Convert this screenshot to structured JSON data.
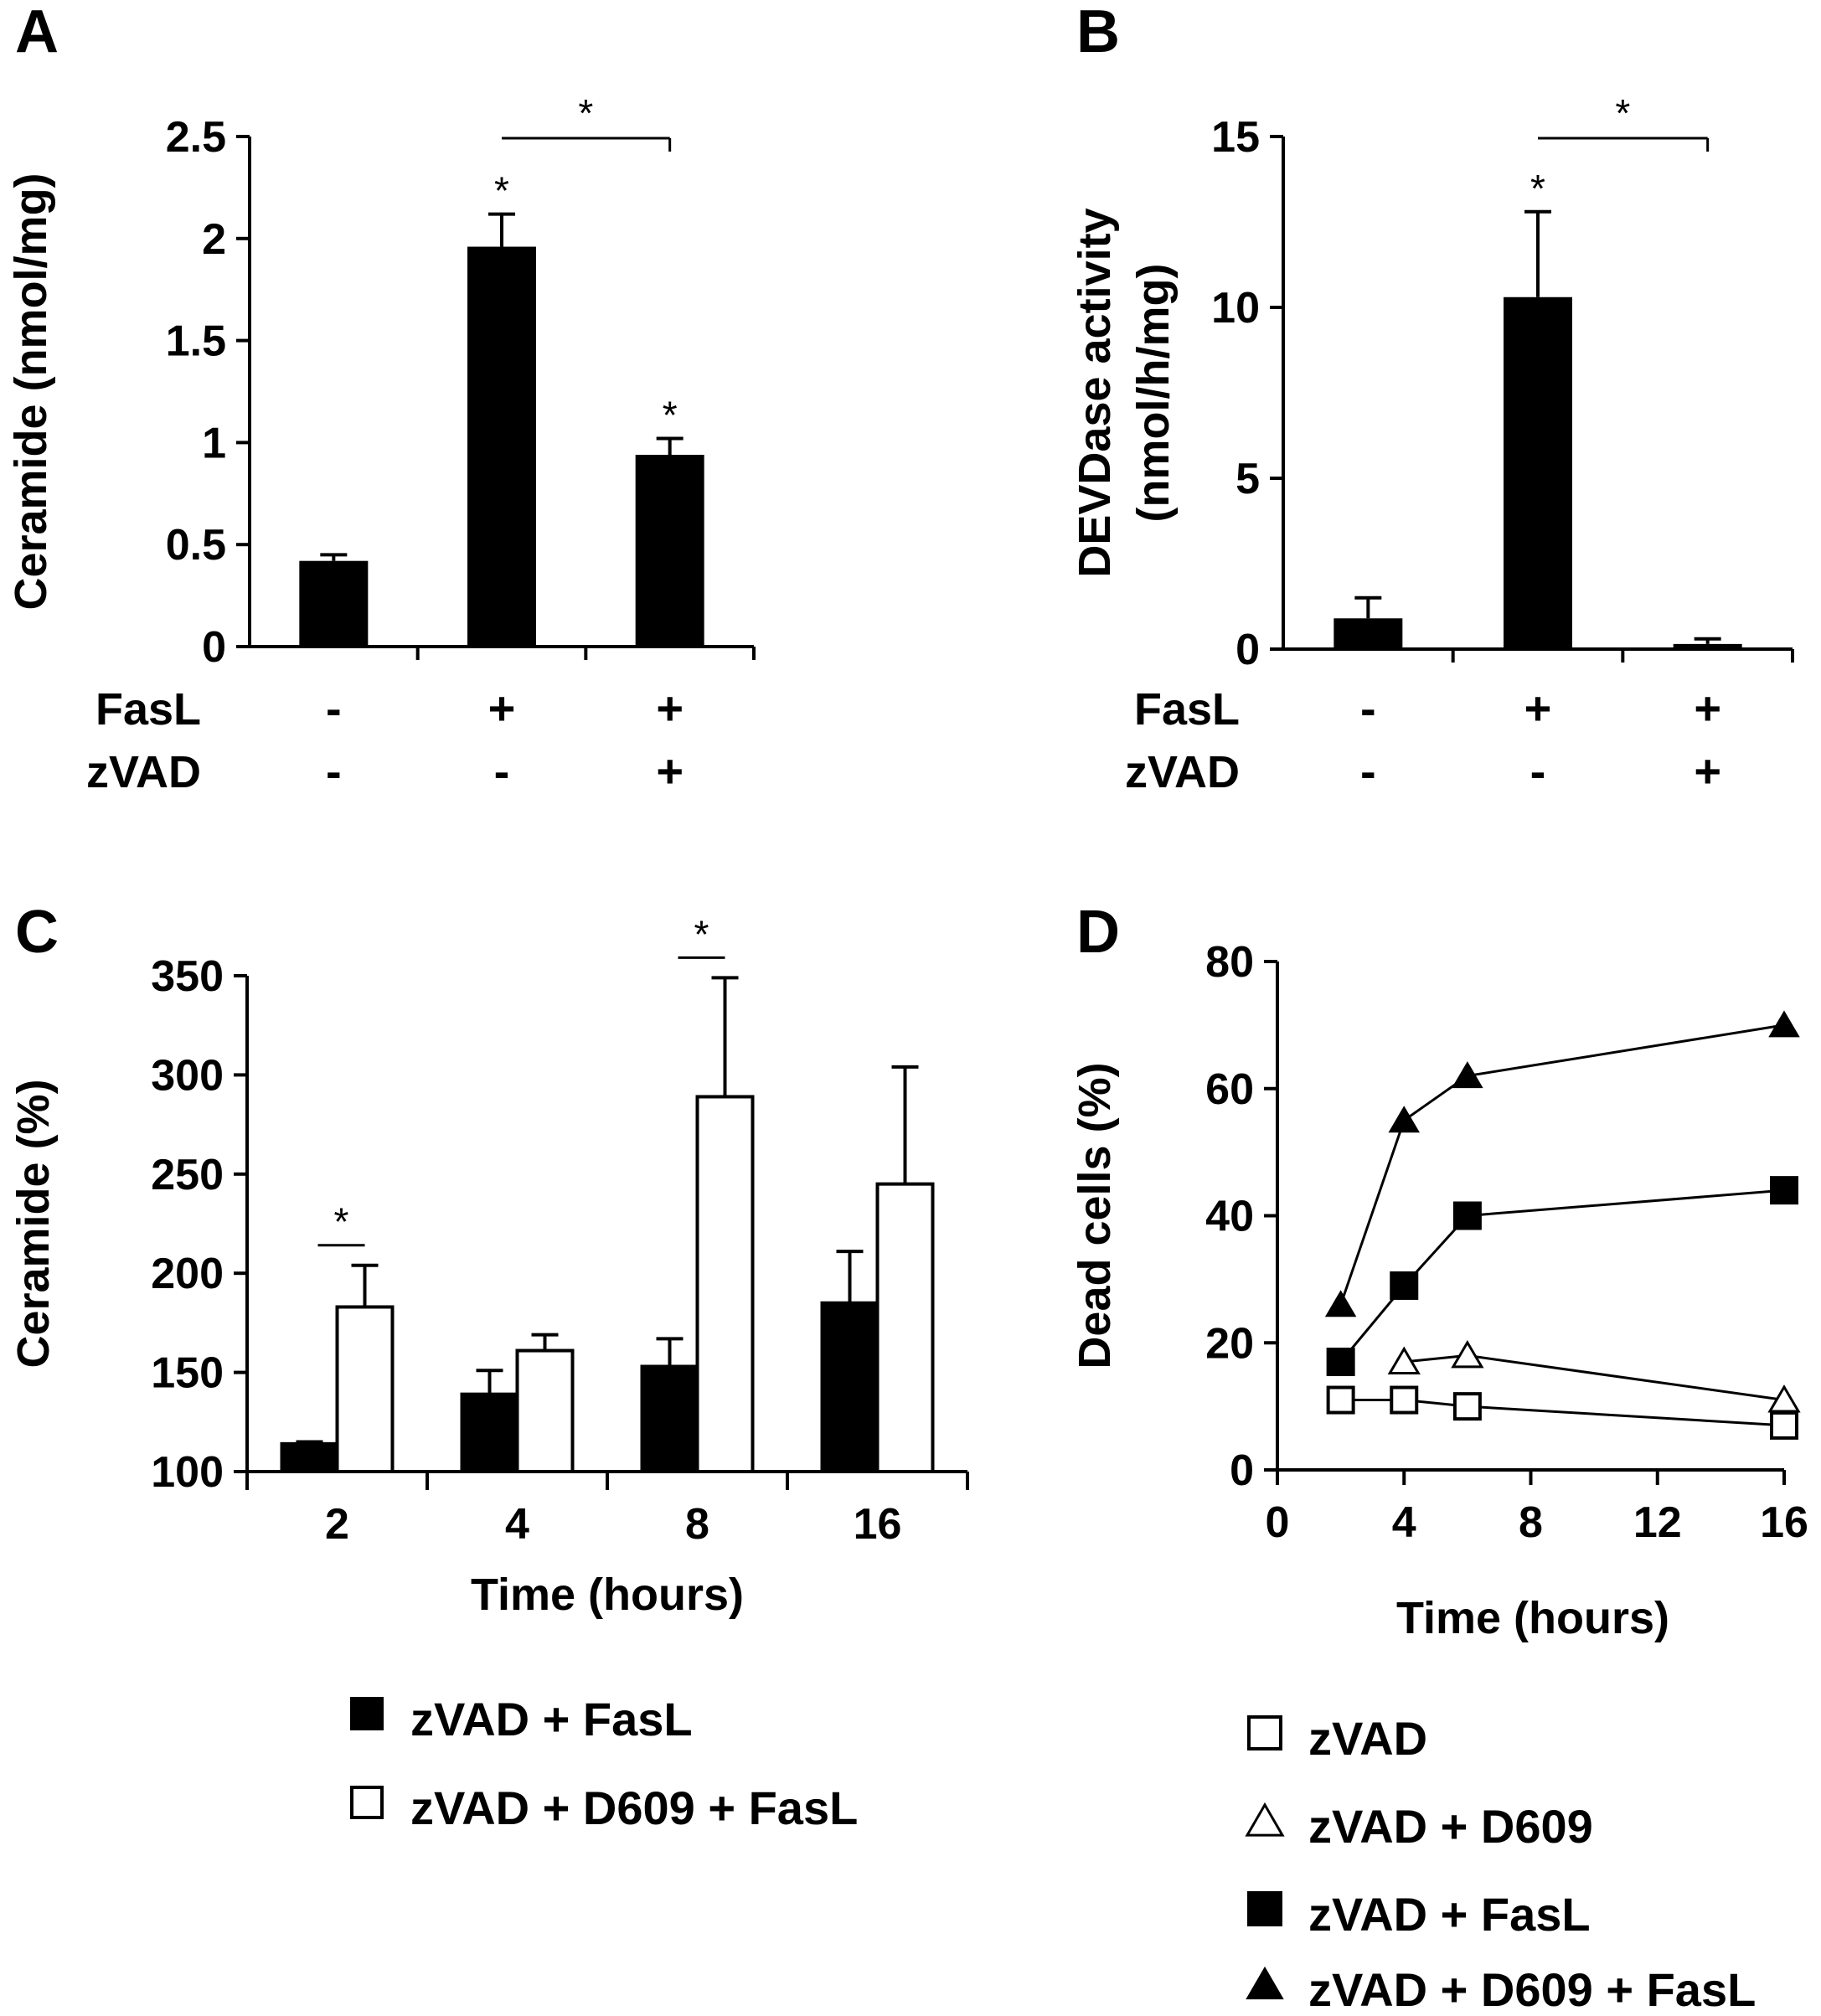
{
  "chart_data": [
    {
      "panel": "A",
      "type": "bar",
      "ylabel": "Ceramide (nmol/mg)",
      "ylim": [
        0,
        2.5
      ],
      "yticks": [
        "0",
        "0.5",
        "1",
        "1.5",
        "2",
        "2.5"
      ],
      "row_labels": [
        "FasL",
        "zVAD"
      ],
      "conditions": [
        {
          "FasL": "-",
          "zVAD": "-",
          "value": 0.42,
          "error": 0.03,
          "star": ""
        },
        {
          "FasL": "+",
          "zVAD": "-",
          "value": 1.96,
          "error": 0.16,
          "star": "*"
        },
        {
          "FasL": "+",
          "zVAD": "+",
          "value": 0.94,
          "error": 0.08,
          "star": "*"
        }
      ],
      "bracket": {
        "from": 1,
        "to": 2,
        "label": "*"
      }
    },
    {
      "panel": "B",
      "type": "bar",
      "ylabel": "DEVDase activity",
      "ylabel2": "(nmol/h/mg)",
      "ylim": [
        0,
        15
      ],
      "yticks": [
        "0",
        "5",
        "10",
        "15"
      ],
      "row_labels": [
        "FasL",
        "zVAD"
      ],
      "conditions": [
        {
          "FasL": "-",
          "zVAD": "-",
          "value": 0.9,
          "error": 0.6,
          "star": ""
        },
        {
          "FasL": "+",
          "zVAD": "-",
          "value": 10.3,
          "error": 2.5,
          "star": "*"
        },
        {
          "FasL": "+",
          "zVAD": "+",
          "value": 0.15,
          "error": 0.15,
          "star": ""
        }
      ],
      "bracket": {
        "from": 1,
        "to": 2,
        "label": "*"
      }
    },
    {
      "panel": "C",
      "type": "bar",
      "xlabel": "Time (hours)",
      "ylabel": "Ceramide (%)",
      "ylim": [
        100,
        350
      ],
      "yticks": [
        "100",
        "150",
        "200",
        "250",
        "300",
        "350"
      ],
      "categories": [
        "2",
        "4",
        "8",
        "16"
      ],
      "series": [
        {
          "name": "zVAD + FasL",
          "fill": "#000000",
          "values": [
            114,
            139,
            153,
            185
          ],
          "errors": [
            1,
            12,
            14,
            26
          ]
        },
        {
          "name": "zVAD + D609 + FasL",
          "fill": "#ffffff",
          "values": [
            183,
            161,
            289,
            245
          ],
          "errors": [
            21,
            8,
            60,
            59
          ]
        }
      ],
      "sig_stars": [
        {
          "category": 0,
          "label": "*"
        },
        {
          "category": 2,
          "label": "*"
        }
      ]
    },
    {
      "panel": "D",
      "type": "line",
      "xlabel": "Time (hours)",
      "ylabel": "Dead cells (%)",
      "xlim": [
        0,
        16
      ],
      "ylim": [
        0,
        80
      ],
      "xticks": [
        "0",
        "4",
        "8",
        "12",
        "16"
      ],
      "yticks": [
        "0",
        "20",
        "40",
        "60",
        "80"
      ],
      "series": [
        {
          "name": "zVAD",
          "marker": "square-open",
          "x": [
            2,
            4,
            6,
            16
          ],
          "y": [
            11,
            11,
            10,
            7
          ]
        },
        {
          "name": "zVAD + D609",
          "marker": "triangle-open",
          "x": [
            4,
            6,
            16
          ],
          "y": [
            17,
            18,
            11
          ]
        },
        {
          "name": "zVAD + FasL",
          "marker": "square-filled",
          "x": [
            2,
            4,
            6,
            16
          ],
          "y": [
            17,
            29,
            40,
            44
          ]
        },
        {
          "name": "zVAD + D609 + FasL",
          "marker": "triangle-filled",
          "x": [
            2,
            4,
            6,
            16
          ],
          "y": [
            26,
            55,
            62,
            70
          ]
        }
      ]
    }
  ]
}
